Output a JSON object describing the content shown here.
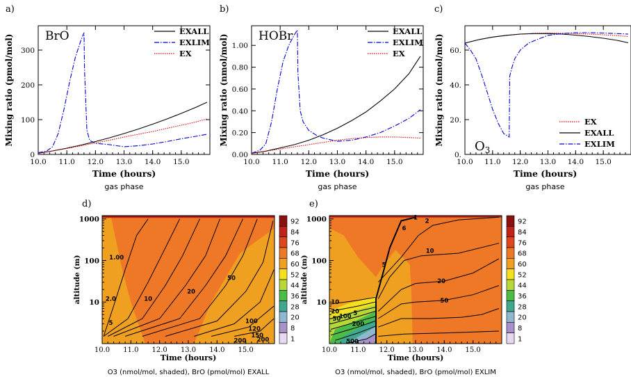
{
  "chart_data": [
    {
      "panel": "a)",
      "type": "line",
      "annotation": "BrO",
      "xlabel": "Time (hours)",
      "ylabel": "Mixing ratio (pmol/mol)",
      "caption": "gas phase",
      "xlim": [
        10.0,
        16.0
      ],
      "ylim": [
        0,
        370
      ],
      "xticks": [
        "10.0",
        "11.0",
        "12.0",
        "13.0",
        "14.0",
        "15.0"
      ],
      "yticks": [
        "0",
        "100",
        "200",
        "300"
      ],
      "legend_position": "top-right",
      "series": [
        {
          "name": "EXALL",
          "style": "solid",
          "color": "#000000",
          "x": [
            10.0,
            10.5,
            11.0,
            11.5,
            12.0,
            12.5,
            13.0,
            13.5,
            14.0,
            14.5,
            15.0,
            15.5,
            15.9
          ],
          "y": [
            3,
            10,
            18,
            27,
            37,
            48,
            60,
            73,
            87,
            102,
            118,
            135,
            150
          ]
        },
        {
          "name": "EXLIM",
          "style": "dashdot",
          "color": "#0000cc",
          "x": [
            10.0,
            10.3,
            10.5,
            10.7,
            10.9,
            11.1,
            11.3,
            11.5,
            11.6,
            11.62,
            11.7,
            11.8,
            12.0,
            12.5,
            13.0,
            13.5,
            14.0,
            14.5,
            15.0,
            15.5,
            15.9
          ],
          "y": [
            5,
            10,
            22,
            60,
            130,
            210,
            280,
            330,
            350,
            240,
            70,
            40,
            32,
            28,
            22,
            25,
            30,
            37,
            45,
            52,
            58
          ]
        },
        {
          "name": "EX",
          "style": "dotted",
          "color": "#dd0000",
          "x": [
            10.0,
            10.5,
            11.0,
            11.5,
            12.0,
            12.5,
            13.0,
            13.5,
            14.0,
            14.5,
            15.0,
            15.5,
            15.9
          ],
          "y": [
            3,
            10,
            17,
            25,
            33,
            41,
            50,
            58,
            66,
            75,
            84,
            93,
            102
          ]
        }
      ]
    },
    {
      "panel": "b)",
      "type": "line",
      "annotation": "HOBr",
      "xlabel": "Time (hours)",
      "ylabel": "Mixing ratio (nmol/mol)",
      "caption": "gas phase",
      "xlim": [
        10.0,
        16.0
      ],
      "ylim": [
        0,
        1.18
      ],
      "xticks": [
        "10.0",
        "11.0",
        "12.0",
        "13.0",
        "14.0",
        "15.0"
      ],
      "yticks": [
        "0.00",
        "0.20",
        "0.40",
        "0.60",
        "0.80",
        "1.00"
      ],
      "legend_position": "top-right",
      "series": [
        {
          "name": "EXALL",
          "style": "solid",
          "color": "#000000",
          "x": [
            10.0,
            10.5,
            11.0,
            11.5,
            12.0,
            12.5,
            13.0,
            13.5,
            14.0,
            14.5,
            15.0,
            15.5,
            15.9
          ],
          "y": [
            0.01,
            0.03,
            0.06,
            0.09,
            0.13,
            0.18,
            0.24,
            0.31,
            0.39,
            0.49,
            0.6,
            0.74,
            0.9
          ]
        },
        {
          "name": "EXLIM",
          "style": "dashdot",
          "color": "#0000cc",
          "x": [
            10.0,
            10.3,
            10.5,
            10.7,
            10.9,
            11.1,
            11.3,
            11.5,
            11.6,
            11.62,
            11.7,
            11.8,
            12.0,
            12.3,
            12.5,
            13.0,
            13.5,
            14.0,
            14.5,
            15.0,
            15.5,
            15.9
          ],
          "y": [
            0.01,
            0.04,
            0.1,
            0.3,
            0.6,
            0.85,
            1.0,
            1.1,
            1.14,
            0.75,
            0.4,
            0.3,
            0.22,
            0.17,
            0.15,
            0.12,
            0.13,
            0.16,
            0.2,
            0.26,
            0.33,
            0.41
          ]
        },
        {
          "name": "EX",
          "style": "dotted",
          "color": "#dd0000",
          "x": [
            10.0,
            10.5,
            11.0,
            11.5,
            12.0,
            12.5,
            13.0,
            13.5,
            14.0,
            14.5,
            15.0,
            15.5,
            15.9
          ],
          "y": [
            0.01,
            0.03,
            0.05,
            0.07,
            0.09,
            0.11,
            0.13,
            0.145,
            0.155,
            0.16,
            0.16,
            0.155,
            0.15
          ]
        }
      ]
    },
    {
      "panel": "c)",
      "type": "line",
      "annotation": "O3",
      "xlabel": "Time (hours)",
      "ylabel": "Mixing ratio (nmol/mol)",
      "caption": "gas phase",
      "xlim": [
        10.0,
        16.0
      ],
      "ylim": [
        0,
        74
      ],
      "xticks": [
        "10.0",
        "11.0",
        "12.0",
        "13.0",
        "14.0",
        "15.0"
      ],
      "yticks": [
        "0.",
        "20.",
        "40.",
        "60."
      ],
      "legend_position": "bottom-right",
      "series": [
        {
          "name": "EX",
          "style": "dotted",
          "color": "#dd0000",
          "x": [
            10.0,
            10.5,
            11.0,
            11.5,
            12.0,
            12.5,
            13.0,
            13.5,
            14.0,
            14.5,
            15.0,
            15.5,
            15.9
          ],
          "y": [
            64,
            66,
            67.5,
            68.5,
            69.2,
            69.6,
            69.8,
            69.7,
            69.5,
            69.2,
            68.8,
            68.3,
            67.8
          ]
        },
        {
          "name": "EXALL",
          "style": "solid",
          "color": "#000000",
          "x": [
            10.0,
            10.5,
            11.0,
            11.5,
            12.0,
            12.5,
            13.0,
            13.5,
            14.0,
            14.5,
            15.0,
            15.5,
            15.9
          ],
          "y": [
            64,
            66,
            67.5,
            68.5,
            69.2,
            69.5,
            69.5,
            69.2,
            68.6,
            67.8,
            66.8,
            65.6,
            64.2
          ]
        },
        {
          "name": "EXLIM",
          "style": "dashdot",
          "color": "#0000cc",
          "x": [
            10.0,
            10.2,
            10.4,
            10.6,
            10.8,
            11.0,
            11.2,
            11.4,
            11.6,
            11.62,
            11.7,
            11.8,
            12.0,
            12.3,
            12.6,
            13.0,
            13.5,
            14.0,
            14.5,
            15.0,
            15.5,
            15.9
          ],
          "y": [
            64,
            60,
            55,
            46,
            36,
            26,
            18,
            12,
            10,
            45,
            50,
            55,
            60,
            64,
            66,
            68.5,
            69.5,
            70,
            70,
            69.8,
            69.5,
            69.2
          ]
        }
      ]
    },
    {
      "panel": "d)",
      "type": "heatmap",
      "xlabel": "Time (hours)",
      "ylabel": "altitude (m)",
      "caption": "O3 (nmol/mol, shaded),  BrO (pmol/mol)  EXALL",
      "xlim": [
        10.0,
        16.0
      ],
      "ylim_log": [
        1,
        1200
      ],
      "xticks": [
        "10.0",
        "11.0",
        "12.0",
        "13.0",
        "14.0",
        "15.0"
      ],
      "yticks": [
        "10",
        "100",
        "1000"
      ],
      "colorbar_levels": [
        "92",
        "84",
        "76",
        "68",
        "60",
        "52",
        "44",
        "36",
        "28",
        "20",
        "8",
        "1"
      ],
      "colorbar_colors": [
        "#8b1010",
        "#c02418",
        "#e0461e",
        "#ee7826",
        "#f0a020",
        "#f5e020",
        "#b8d838",
        "#4cbc48",
        "#40a890",
        "#8fb8d0",
        "#a890c8",
        "#e8d8f0"
      ],
      "contour_labels": [
        "1.00",
        "2.0",
        "5",
        "10",
        "20",
        "50",
        "100",
        "120",
        "150",
        "200",
        "200"
      ],
      "contours": [
        [
          10.05,
          1.5,
          10.4,
          8,
          10.8,
          60,
          11.2,
          400,
          11.6,
          1000
        ],
        [
          10.05,
          1.5,
          10.9,
          4,
          11.6,
          30,
          12.2,
          200,
          12.7,
          1000
        ],
        [
          10.2,
          1.5,
          11.4,
          4,
          12.2,
          25,
          12.8,
          130,
          13.4,
          1000
        ],
        [
          10.4,
          1.5,
          12.0,
          4,
          12.9,
          25,
          13.6,
          130,
          14.1,
          1000
        ],
        [
          10.8,
          1.5,
          12.7,
          4,
          13.6,
          25,
          14.3,
          130,
          14.9,
          1000
        ],
        [
          11.4,
          1.5,
          13.4,
          4,
          14.3,
          25,
          14.9,
          130,
          15.4,
          1000
        ],
        [
          12.2,
          1.5,
          14.0,
          3.5,
          15.0,
          18,
          15.6,
          90,
          15.95,
          900
        ],
        [
          13.2,
          1.5,
          14.6,
          3,
          15.5,
          10,
          15.98,
          60
        ],
        [
          13.8,
          1.5,
          15.1,
          2.5,
          15.98,
          8
        ],
        [
          14.6,
          1.5,
          15.5,
          2,
          15.98,
          4
        ]
      ]
    },
    {
      "panel": "e)",
      "type": "heatmap",
      "xlabel": "Time (hours)",
      "ylabel": "altitude (m)",
      "caption": "O3 (nmol/mol, shaded),  BrO (pmol/mol)  EXLIM",
      "xlim": [
        10.0,
        16.0
      ],
      "ylim_log": [
        1,
        1200
      ],
      "xticks": [
        "10.0",
        "11.0",
        "12.0",
        "13.0",
        "14.0",
        "15.0"
      ],
      "yticks": [
        "10",
        "100",
        "1000"
      ],
      "colorbar_levels": [
        "92",
        "84",
        "76",
        "68",
        "60",
        "52",
        "44",
        "36",
        "28",
        "20",
        "8",
        "1"
      ],
      "colorbar_colors": [
        "#8b1010",
        "#c02418",
        "#e0461e",
        "#ee7826",
        "#f0a020",
        "#f5e020",
        "#b8d838",
        "#4cbc48",
        "#40a890",
        "#8fb8d0",
        "#a890c8",
        "#e8d8f0"
      ],
      "contour_labels": [
        "1",
        "2",
        "5",
        "10",
        "20",
        "50",
        "100",
        "200",
        "500",
        "1",
        "2",
        "5",
        "10",
        "20",
        "50"
      ],
      "contours": [
        [
          10.05,
          9,
          11.0,
          11,
          11.6,
          13
        ],
        [
          10.05,
          6,
          11.0,
          8,
          11.6,
          10
        ],
        [
          10.05,
          4,
          11.0,
          6,
          11.6,
          7.5
        ],
        [
          10.05,
          3,
          11.0,
          4.5,
          11.6,
          6
        ],
        [
          10.05,
          2.2,
          11.0,
          3.4,
          11.6,
          4.5
        ],
        [
          10.05,
          1.6,
          11.0,
          2.5,
          11.6,
          3.5
        ],
        [
          10.2,
          1.2,
          11.0,
          1.8,
          11.6,
          2.6
        ],
        [
          10.7,
          1.05,
          11.3,
          1.3,
          11.6,
          1.7
        ],
        [
          11.62,
          1,
          11.62,
          12,
          11.9,
          60,
          12.1,
          200,
          12.5,
          900,
          13,
          1100
        ],
        [
          11.7,
          30,
          12.5,
          120,
          13.1,
          400,
          13.6,
          700,
          14.5,
          950,
          15.9,
          1100
        ],
        [
          11.7,
          12,
          12.1,
          40,
          12.6,
          100,
          13.2,
          130,
          14.5,
          150,
          15.9,
          260
        ],
        [
          11.7,
          6,
          12.5,
          20,
          13.0,
          28,
          14.0,
          32,
          15.0,
          50,
          15.9,
          110
        ],
        [
          11.7,
          4,
          12.5,
          9,
          13.0,
          10,
          14.0,
          11,
          15.0,
          15,
          15.9,
          25
        ],
        [
          11.7,
          2.5,
          12.5,
          4,
          13.5,
          4,
          14.6,
          4.3,
          15.3,
          5,
          15.9,
          7
        ],
        [
          11.7,
          1.5,
          12.6,
          1.7,
          14.0,
          1.8,
          15.9,
          2
        ]
      ]
    }
  ]
}
